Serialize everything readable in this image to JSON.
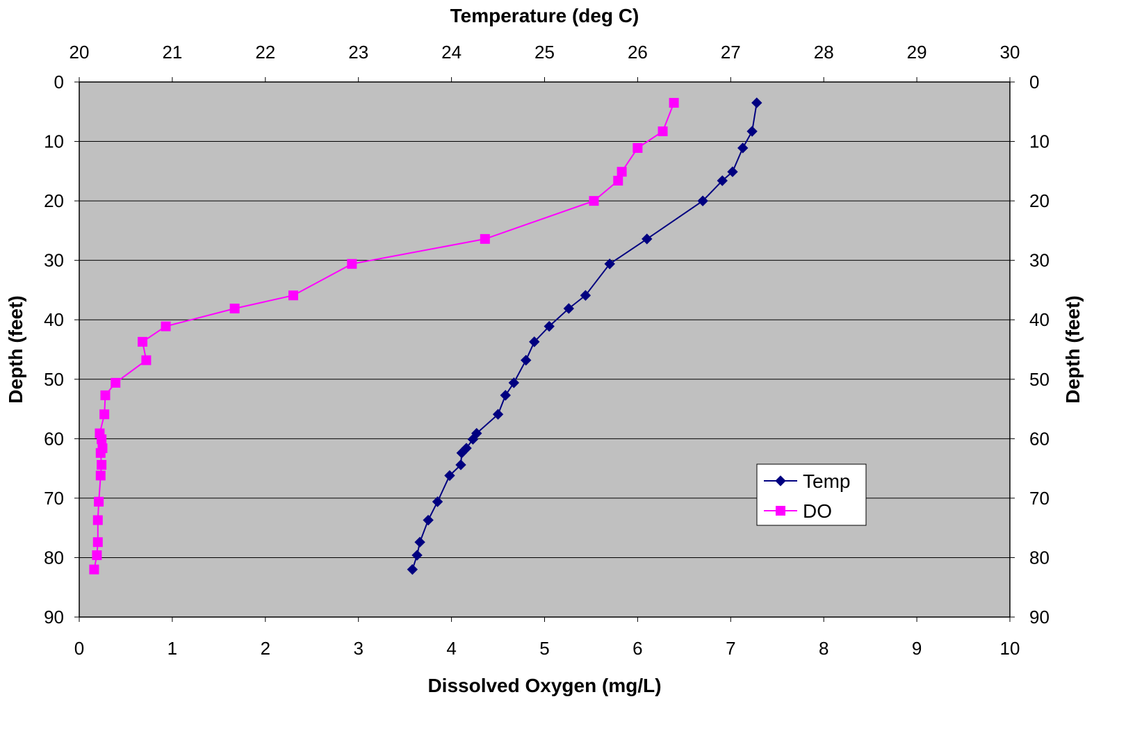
{
  "chart_data": {
    "type": "scatter",
    "title": "",
    "x_bottom": {
      "label": "Dissolved Oxygen (mg/L)",
      "range": [
        0,
        10
      ],
      "ticks": [
        "0",
        "1",
        "2",
        "3",
        "4",
        "5",
        "6",
        "7",
        "8",
        "9",
        "10"
      ]
    },
    "x_top": {
      "label": "Temperature (deg C)",
      "range": [
        20,
        30
      ],
      "ticks": [
        "20",
        "21",
        "22",
        "23",
        "24",
        "25",
        "26",
        "27",
        "28",
        "29",
        "30"
      ]
    },
    "y_left": {
      "label": "Depth (feet)",
      "range": [
        0,
        90
      ],
      "reversed": true,
      "ticks": [
        "0",
        "10",
        "20",
        "30",
        "40",
        "50",
        "60",
        "70",
        "80",
        "90"
      ]
    },
    "y_right": {
      "label": "Depth (feet)",
      "ticks": [
        "0",
        "10",
        "20",
        "30",
        "40",
        "50",
        "60",
        "70",
        "80",
        "90"
      ]
    },
    "grid": "horizontal",
    "plot_background": "#c0c0c0",
    "legend": {
      "position": "lower-right",
      "entries": [
        "Temp",
        "DO"
      ]
    },
    "series": [
      {
        "name": "Temp",
        "axis": "top",
        "color": "#000080",
        "marker": "diamond",
        "points": [
          [
            27.28,
            3.5
          ],
          [
            27.23,
            8.3
          ],
          [
            27.13,
            11.1
          ],
          [
            27.02,
            15.1
          ],
          [
            26.91,
            16.6
          ],
          [
            26.7,
            20.0
          ],
          [
            26.1,
            26.4
          ],
          [
            25.7,
            30.6
          ],
          [
            25.44,
            35.9
          ],
          [
            25.26,
            38.1
          ],
          [
            25.05,
            41.1
          ],
          [
            24.89,
            43.7
          ],
          [
            24.8,
            46.8
          ],
          [
            24.67,
            50.6
          ],
          [
            24.58,
            52.7
          ],
          [
            24.5,
            55.9
          ],
          [
            24.27,
            59.1
          ],
          [
            24.23,
            60.1
          ],
          [
            24.16,
            61.6
          ],
          [
            24.11,
            62.4
          ],
          [
            24.1,
            64.4
          ],
          [
            23.98,
            66.2
          ],
          [
            23.85,
            70.6
          ],
          [
            23.75,
            73.7
          ],
          [
            23.66,
            77.4
          ],
          [
            23.63,
            79.6
          ],
          [
            23.58,
            82.0
          ]
        ]
      },
      {
        "name": "DO",
        "axis": "bottom",
        "color": "#ff00ff",
        "marker": "square",
        "points": [
          [
            6.39,
            3.5
          ],
          [
            6.27,
            8.3
          ],
          [
            6.0,
            11.1
          ],
          [
            5.83,
            15.1
          ],
          [
            5.79,
            16.6
          ],
          [
            5.53,
            20.0
          ],
          [
            4.36,
            26.4
          ],
          [
            2.93,
            30.6
          ],
          [
            2.3,
            35.9
          ],
          [
            1.67,
            38.1
          ],
          [
            0.93,
            41.1
          ],
          [
            0.68,
            43.7
          ],
          [
            0.72,
            46.8
          ],
          [
            0.39,
            50.6
          ],
          [
            0.28,
            52.7
          ],
          [
            0.27,
            55.9
          ],
          [
            0.22,
            59.1
          ],
          [
            0.24,
            60.1
          ],
          [
            0.25,
            61.6
          ],
          [
            0.23,
            62.4
          ],
          [
            0.24,
            64.4
          ],
          [
            0.23,
            66.2
          ],
          [
            0.21,
            70.6
          ],
          [
            0.2,
            73.7
          ],
          [
            0.2,
            77.4
          ],
          [
            0.19,
            79.6
          ],
          [
            0.16,
            82.0
          ]
        ]
      }
    ]
  }
}
